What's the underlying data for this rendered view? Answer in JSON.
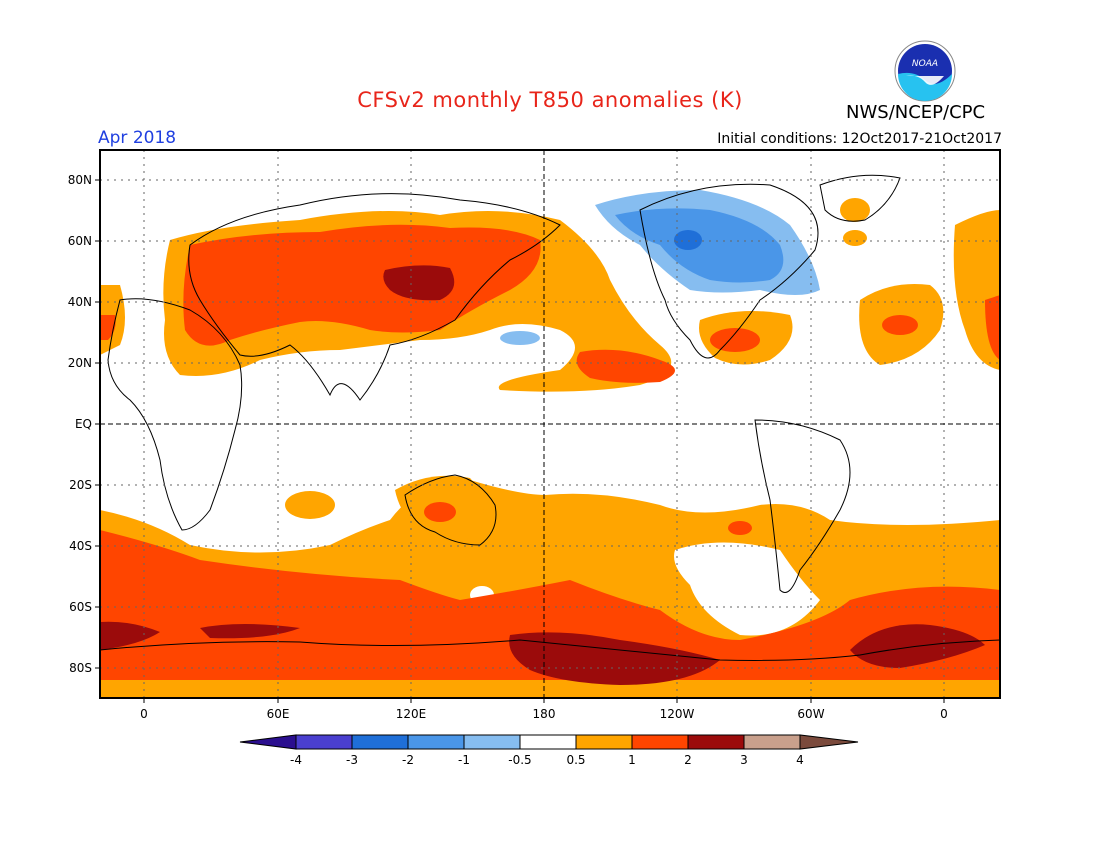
{
  "header": {
    "title": "CFSv2 monthly T850 anomalies (K)",
    "agency": "NWS/NCEP/CPC",
    "logo_text": "NOAA",
    "month": "Apr 2018",
    "initial_conditions": "Initial conditions: 12Oct2017-21Oct2017"
  },
  "axes": {
    "lat_labels": [
      "80N",
      "60N",
      "40N",
      "20N",
      "EQ",
      "20S",
      "40S",
      "60S",
      "80S"
    ],
    "lon_labels": [
      "0",
      "60E",
      "120E",
      "180",
      "120W",
      "60W",
      "0"
    ]
  },
  "colorbar": {
    "labels": [
      "-4",
      "-3",
      "-2",
      "-1",
      "-0.5",
      "0.5",
      "1",
      "2",
      "3",
      "4"
    ],
    "colors": [
      "#2b0f8f",
      "#4a3fcf",
      "#1f6fd8",
      "#4a96e8",
      "#86bdf0",
      "#ffffff",
      "#ffa500",
      "#ff4500",
      "#9b0b0b",
      "#c9a08c",
      "#7b4a3c"
    ]
  }
}
